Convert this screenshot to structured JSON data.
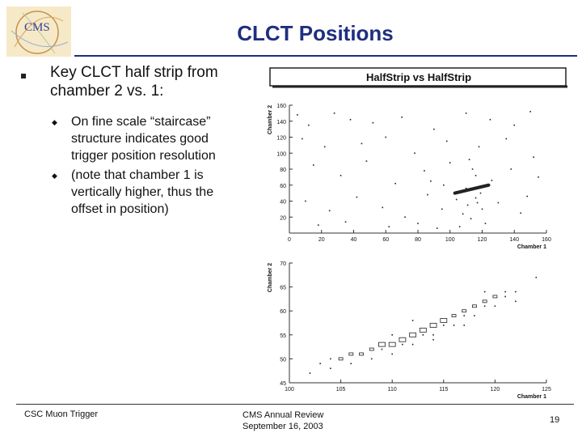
{
  "slide": {
    "title": "CLCT Positions",
    "logo_text": "CMS"
  },
  "bullets": {
    "main_line1": "Key CLCT half strip from",
    "main_line2": "chamber 2 vs. 1:",
    "sub1_lines": [
      "On fine scale “staircase”",
      "structure indicates good",
      "trigger position resolution"
    ],
    "sub2_lines": [
      "(note that chamber 1 is",
      "vertically higher, thus the",
      "offset in position)"
    ]
  },
  "footer": {
    "left": "CSC Muon Trigger",
    "center_line1": "CMS Annual Review",
    "center_line2": "September 16, 2003",
    "page": "19"
  },
  "colors": {
    "title": "#1f2f7f",
    "rule": "#1f2f7f",
    "points": "#222222"
  },
  "chart_data": [
    {
      "type": "scatter",
      "title": "HalfStrip vs HalfStrip",
      "xlabel": "Chamber 1",
      "ylabel": "Chamber 2",
      "xlim": [
        0,
        160
      ],
      "ylim": [
        0,
        160
      ],
      "xticks": [
        0,
        20,
        40,
        60,
        80,
        100,
        120,
        140,
        160
      ],
      "yticks": [
        20,
        40,
        60,
        80,
        100,
        120,
        140,
        160
      ],
      "dense_band": {
        "x_range": [
          103,
          124
        ],
        "y_range": [
          50,
          60
        ]
      },
      "points": [
        [
          5,
          148
        ],
        [
          12,
          135
        ],
        [
          28,
          150
        ],
        [
          38,
          142
        ],
        [
          52,
          138
        ],
        [
          70,
          145
        ],
        [
          90,
          130
        ],
        [
          110,
          150
        ],
        [
          125,
          142
        ],
        [
          140,
          135
        ],
        [
          150,
          152
        ],
        [
          8,
          118
        ],
        [
          22,
          108
        ],
        [
          45,
          112
        ],
        [
          60,
          120
        ],
        [
          78,
          100
        ],
        [
          98,
          115
        ],
        [
          118,
          108
        ],
        [
          135,
          118
        ],
        [
          152,
          95
        ],
        [
          15,
          85
        ],
        [
          32,
          72
        ],
        [
          48,
          90
        ],
        [
          66,
          62
        ],
        [
          84,
          78
        ],
        [
          100,
          88
        ],
        [
          112,
          92
        ],
        [
          114,
          80
        ],
        [
          116,
          72
        ],
        [
          138,
          80
        ],
        [
          155,
          70
        ],
        [
          10,
          40
        ],
        [
          25,
          28
        ],
        [
          42,
          45
        ],
        [
          58,
          32
        ],
        [
          72,
          20
        ],
        [
          86,
          48
        ],
        [
          95,
          30
        ],
        [
          104,
          42
        ],
        [
          108,
          24
        ],
        [
          111,
          35
        ],
        [
          113,
          18
        ],
        [
          116,
          44
        ],
        [
          120,
          30
        ],
        [
          122,
          12
        ],
        [
          130,
          38
        ],
        [
          144,
          25
        ],
        [
          148,
          46
        ],
        [
          18,
          10
        ],
        [
          35,
          14
        ],
        [
          62,
          8
        ],
        [
          80,
          12
        ],
        [
          92,
          6
        ],
        [
          106,
          8
        ],
        [
          119,
          50
        ],
        [
          96,
          60
        ],
        [
          88,
          65
        ],
        [
          126,
          66
        ],
        [
          110,
          56
        ],
        [
          117,
          38
        ]
      ]
    },
    {
      "type": "heatmap",
      "xlabel": "Chamber 1",
      "ylabel": "Chamber 2",
      "xlim": [
        100,
        125
      ],
      "ylim": [
        45,
        70
      ],
      "xticks": [
        100,
        105,
        110,
        115,
        120,
        125
      ],
      "yticks": [
        45,
        50,
        55,
        60,
        65,
        70
      ],
      "boxes": [
        [
          103,
          49,
          1
        ],
        [
          104,
          50,
          1
        ],
        [
          105,
          50,
          2
        ],
        [
          106,
          51,
          2
        ],
        [
          107,
          51,
          2
        ],
        [
          108,
          52,
          2
        ],
        [
          109,
          53,
          3
        ],
        [
          110,
          53,
          3
        ],
        [
          111,
          54,
          3
        ],
        [
          112,
          55,
          3
        ],
        [
          113,
          56,
          3
        ],
        [
          114,
          57,
          3
        ],
        [
          115,
          58,
          3
        ],
        [
          116,
          59,
          2
        ],
        [
          117,
          60,
          2
        ],
        [
          118,
          61,
          2
        ],
        [
          119,
          62,
          2
        ],
        [
          120,
          63,
          2
        ],
        [
          121,
          64,
          1
        ],
        [
          109,
          52,
          1
        ],
        [
          111,
          53,
          1
        ],
        [
          113,
          55,
          1
        ],
        [
          115,
          57,
          1
        ],
        [
          117,
          59,
          1
        ],
        [
          119,
          61,
          1
        ],
        [
          121,
          63,
          1
        ],
        [
          106,
          49,
          1
        ],
        [
          108,
          50,
          1
        ],
        [
          110,
          51,
          1
        ],
        [
          112,
          53,
          1
        ],
        [
          114,
          55,
          1
        ],
        [
          116,
          57,
          1
        ],
        [
          118,
          59,
          1
        ],
        [
          120,
          61,
          1
        ],
        [
          122,
          62,
          1
        ],
        [
          122,
          64,
          1
        ],
        [
          124,
          67,
          1
        ],
        [
          104,
          48,
          1
        ],
        [
          102,
          47,
          1
        ],
        [
          112,
          58,
          1
        ],
        [
          110,
          55,
          1
        ],
        [
          114,
          54,
          1
        ],
        [
          117,
          57,
          1
        ],
        [
          119,
          64,
          1
        ]
      ]
    }
  ]
}
